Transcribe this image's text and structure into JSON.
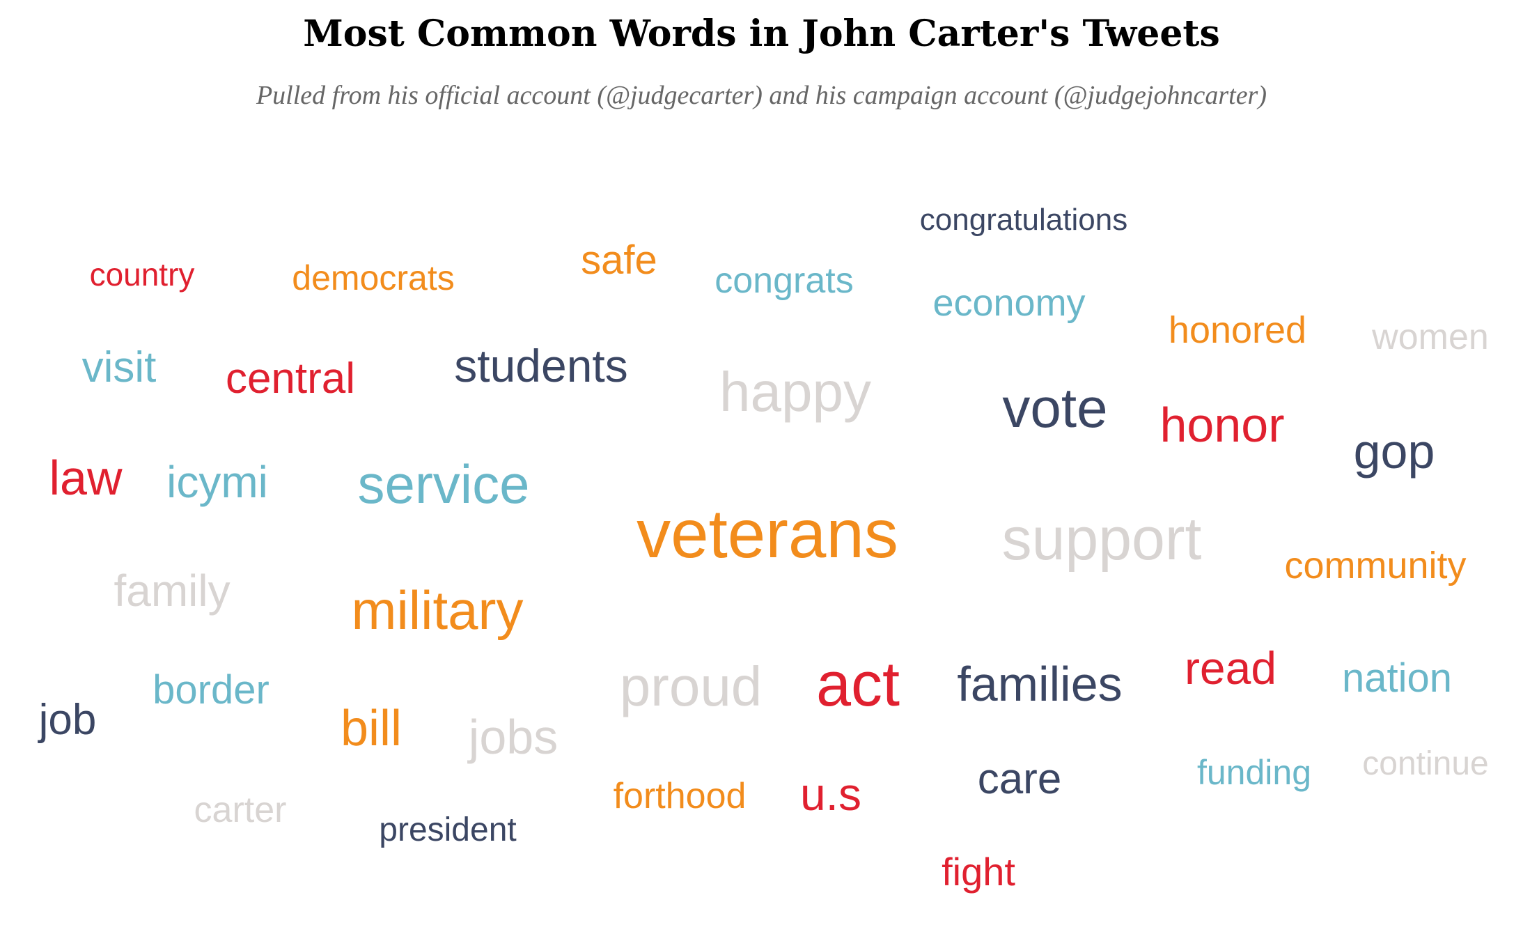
{
  "chart_data": {
    "type": "wordcloud",
    "title": "Most Common Words in John Carter's Tweets",
    "subtitle": "Pulled from his official account (@judgecarter) and his campaign account (@judgejohncarter)",
    "palette": {
      "navy": "#3b4663",
      "red": "#e0202f",
      "orange": "#f28c1c",
      "teal": "#6ab7c9",
      "gray": "#d8d4d2"
    },
    "words": [
      {
        "word": "veterans",
        "color": "orange"
      },
      {
        "word": "support",
        "color": "gray"
      },
      {
        "word": "act",
        "color": "red"
      },
      {
        "word": "service",
        "color": "teal"
      },
      {
        "word": "vote",
        "color": "navy"
      },
      {
        "word": "proud",
        "color": "gray"
      },
      {
        "word": "military",
        "color": "orange"
      },
      {
        "word": "happy",
        "color": "gray"
      },
      {
        "word": "honor",
        "color": "red"
      },
      {
        "word": "families",
        "color": "navy"
      },
      {
        "word": "bill",
        "color": "orange"
      },
      {
        "word": "students",
        "color": "navy"
      },
      {
        "word": "gop",
        "color": "navy"
      },
      {
        "word": "law",
        "color": "red"
      },
      {
        "word": "jobs",
        "color": "gray"
      },
      {
        "word": "read",
        "color": "red"
      },
      {
        "word": "icymi",
        "color": "teal"
      },
      {
        "word": "family",
        "color": "gray"
      },
      {
        "word": "central",
        "color": "red"
      },
      {
        "word": "care",
        "color": "navy"
      },
      {
        "word": "u.s",
        "color": "red"
      },
      {
        "word": "visit",
        "color": "teal"
      },
      {
        "word": "job",
        "color": "navy"
      },
      {
        "word": "nation",
        "color": "teal"
      },
      {
        "word": "safe",
        "color": "orange"
      },
      {
        "word": "border",
        "color": "teal"
      },
      {
        "word": "community",
        "color": "orange"
      },
      {
        "word": "economy",
        "color": "teal"
      },
      {
        "word": "fight",
        "color": "red"
      },
      {
        "word": "honored",
        "color": "orange"
      },
      {
        "word": "congrats",
        "color": "teal"
      },
      {
        "word": "forthood",
        "color": "orange"
      },
      {
        "word": "women",
        "color": "gray"
      },
      {
        "word": "democrats",
        "color": "orange"
      },
      {
        "word": "carter",
        "color": "gray"
      },
      {
        "word": "funding",
        "color": "teal"
      },
      {
        "word": "country",
        "color": "red"
      },
      {
        "word": "continue",
        "color": "gray"
      },
      {
        "word": "president",
        "color": "navy"
      },
      {
        "word": "congratulations",
        "color": "navy"
      }
    ]
  }
}
